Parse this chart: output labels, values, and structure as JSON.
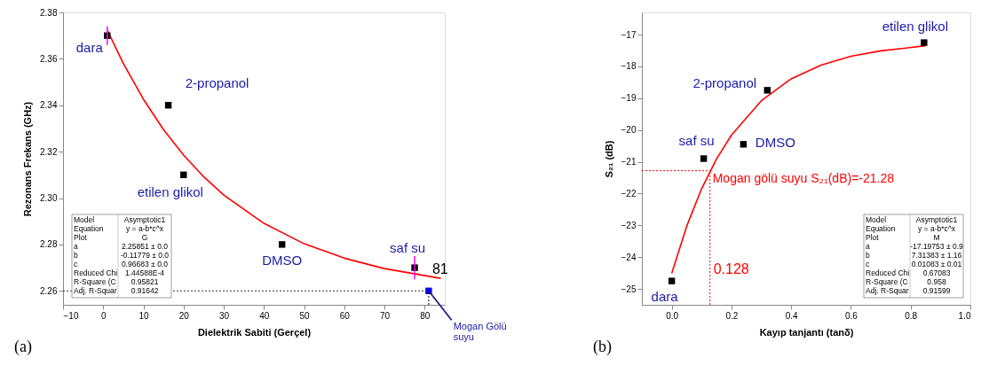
{
  "chart_data": [
    {
      "type": "scatter",
      "xlabel": "Dielektrik Sabiti (Gerçel)",
      "ylabel": "Rezonans Frekans (GHz)",
      "xlim": [
        -10,
        85
      ],
      "xticks": [
        -10,
        0,
        10,
        20,
        30,
        40,
        50,
        60,
        70,
        80
      ],
      "ylim": [
        2.254,
        2.38
      ],
      "yticks": [
        2.26,
        2.28,
        {
          "value": 2.3,
          "label": "2.30"
        },
        2.32,
        2.34,
        2.36,
        2.38
      ],
      "series": [
        {
          "type": "line",
          "color": "#ff0000",
          "x": [
            1,
            5,
            10,
            15,
            20,
            25,
            30,
            40,
            50,
            60,
            70,
            84
          ],
          "values": [
            2.3724,
            2.358,
            2.3426,
            2.3295,
            2.3185,
            2.3092,
            2.3013,
            2.2891,
            2.2803,
            2.2741,
            2.2696,
            2.2654
          ]
        },
        {
          "color": "#000000",
          "marker": "square",
          "x": [
            1,
            16.2,
            20,
            44.5,
            77.5
          ],
          "values": [
            2.37,
            2.34,
            2.31,
            2.28,
            2.27
          ],
          "errors": [
            0.004,
            null,
            null,
            null,
            0.005
          ]
        },
        {
          "name": "Mogan Gölü suyu",
          "color": "#0000ff",
          "marker": "square",
          "x": [
            81
          ],
          "values": [
            2.26
          ]
        }
      ],
      "ref_lines": [
        {
          "axis": "y",
          "value": 2.26,
          "line_style": "dotted"
        },
        {
          "axis": "x",
          "value": 81,
          "label": "81",
          "color": "#000000",
          "line_style": "dotted"
        }
      ],
      "annotations": [
        {
          "text": "dara",
          "x": 1,
          "y": 2.37
        },
        {
          "text": "2-propanol",
          "x": 16.2,
          "y": 2.34
        },
        {
          "text": "etilen glikol",
          "x": 20,
          "y": 2.31
        },
        {
          "text": "DMSO",
          "x": 44.5,
          "y": 2.28
        },
        {
          "text": "saf su",
          "x": 77.5,
          "y": 2.27
        },
        "(a)",
        "Model",
        "Asymptotic1",
        "Equation",
        "y = a-b*c^x",
        "Plot",
        "G",
        "a",
        "2.25851 ± 0.0",
        "b",
        "-0.11779 ± 0.0",
        "c",
        "0.96683 ± 0.0",
        "Reduced Chi",
        "1.44588E-4",
        "R-Square (C",
        "0.95821",
        "Adj. R-Squar",
        "0.91642"
      ]
    },
    {
      "type": "scatter",
      "xlabel": "Kayıp tanjantı (tanδ)",
      "ylabel": "S₂₁ (dB)",
      "xlim": [
        -0.1,
        1.0
      ],
      "xticks": [
        {
          "value": 0,
          "label": "0.0"
        },
        0.2,
        0.4,
        0.6,
        0.8,
        {
          "value": 1,
          "label": "1.0"
        }
      ],
      "ylim": [
        -25.5,
        -16.3
      ],
      "yticks": [
        -25,
        -24,
        -23,
        -22,
        -21,
        -20,
        -19,
        -18,
        -17
      ],
      "series": [
        {
          "type": "line",
          "color": "#ff0000",
          "x": [
            0,
            0.05,
            0.1,
            0.15,
            0.2,
            0.3,
            0.4,
            0.5,
            0.6,
            0.7,
            0.85
          ],
          "values": [
            -24.51,
            -23.03,
            -21.85,
            -20.91,
            -20.16,
            -19.08,
            -18.39,
            -17.96,
            -17.68,
            -17.51,
            -17.35
          ]
        },
        {
          "color": "#000000",
          "marker": "square",
          "x": [
            0,
            0.107,
            0.24,
            0.32,
            0.845
          ],
          "values": [
            -24.75,
            -20.9,
            -20.45,
            -18.75,
            -17.25
          ]
        }
      ],
      "ref_lines": [
        {
          "axis": "y",
          "value": -21.28,
          "label": "Mogan gölü suyu S₂₁(dB)=-21.28",
          "color": "#ff0000",
          "line_style": "dotted"
        },
        {
          "axis": "x",
          "value": 0.128,
          "label": "0.128",
          "color": "#ff0000",
          "line_style": "dotted"
        }
      ],
      "annotations": [
        {
          "text": "dara",
          "x": 0,
          "y": -24.75
        },
        {
          "text": "saf su",
          "x": 0.107,
          "y": -20.9
        },
        {
          "text": "DMSO",
          "x": 0.24,
          "y": -20.45
        },
        {
          "text": "2-propanol",
          "x": 0.32,
          "y": -18.75
        },
        {
          "text": "etilen glikol",
          "x": 0.845,
          "y": -17.25
        },
        "(b)",
        "Model",
        "Asymptotic1",
        "Equation",
        "y = a-b*c^x",
        "Plot",
        "M",
        "a",
        "-17.19753 ± 0.9",
        "b",
        "7.31383 ± 1.16",
        "c",
        "0.01083 ± 0.01",
        "Reduced Chi",
        "0.67083",
        "R-Square (C",
        "0.958",
        "Adj. R-Squar",
        "0.91599"
      ]
    }
  ]
}
